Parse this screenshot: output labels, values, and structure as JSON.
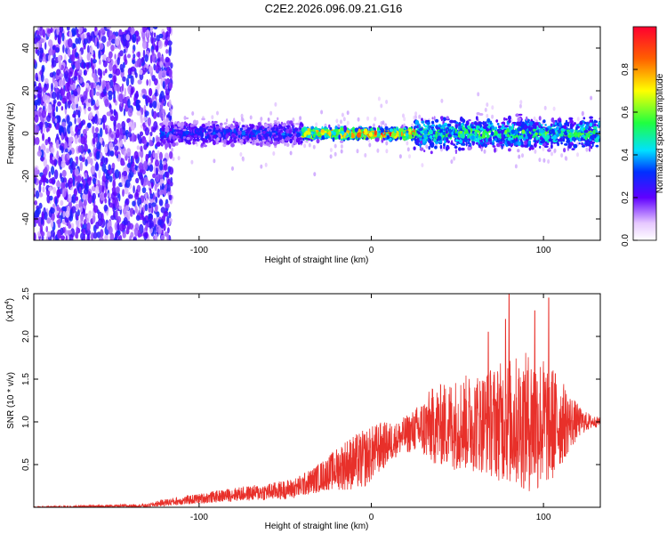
{
  "figure_title": "C2E2.2026.096.09.21.G16",
  "chart_data": [
    {
      "type": "heatmap",
      "title": "C2E2.2026.096.09.21.G16",
      "xlabel": "Height of straight line (km)",
      "ylabel": "Frequency (Hz)",
      "xlim": [
        -196,
        133
      ],
      "ylim": [
        -50,
        50
      ],
      "xticks": [
        -100,
        0,
        100
      ],
      "xtick_labels": [
        "-100",
        "0",
        "100"
      ],
      "yticks": [
        -40,
        -20,
        0,
        20,
        40
      ],
      "ytick_labels": [
        "-40",
        "-20",
        "0",
        "20",
        "40"
      ],
      "colorbar": {
        "label": "Normalized spectral amplitude",
        "range": [
          0.0,
          1.0
        ],
        "ticks": [
          0.0,
          0.2,
          0.4,
          0.6,
          0.8
        ],
        "tick_labels": [
          "0.0",
          "0.2",
          "0.4",
          "0.6",
          "0.8"
        ]
      },
      "description_regions": [
        {
          "x_range": [
            -196,
            -122
          ],
          "freq_spread_hz": 50,
          "amplitude": 0.15
        },
        {
          "x_range": [
            -122,
            -40
          ],
          "freq_spread_hz": 6,
          "amplitude": 0.3
        },
        {
          "x_range": [
            -40,
            25
          ],
          "freq_spread_hz": 3,
          "amplitude": 0.8
        },
        {
          "x_range": [
            25,
            133
          ],
          "freq_spread_hz": 8,
          "amplitude": 0.5
        }
      ]
    },
    {
      "type": "line",
      "xlabel": "Height of straight line (km)",
      "ylabel": "SNR (10 * v/v)",
      "y_multiplier_label": "(x10",
      "y_multiplier_exp": "4",
      "y_multiplier_close": ")",
      "xlim": [
        -196,
        133
      ],
      "ylim": [
        0,
        2.5
      ],
      "xticks": [
        -100,
        0,
        100
      ],
      "xtick_labels": [
        "-100",
        "0",
        "100"
      ],
      "yticks": [
        0.5,
        1.0,
        1.5,
        2.0,
        2.5
      ],
      "ytick_labels": [
        "0.5",
        "1.0",
        "1.5",
        "2.0",
        "2.5"
      ],
      "color": "#e8302a",
      "series": [
        {
          "name": "SNR",
          "x": [
            -196,
            -130,
            -122,
            -100,
            -80,
            -60,
            -45,
            -35,
            -25,
            -15,
            -5,
            5,
            15,
            25,
            35,
            50,
            65,
            80,
            95,
            105,
            115,
            122,
            128,
            133
          ],
          "baseline": [
            0.0,
            0.02,
            0.05,
            0.1,
            0.15,
            0.18,
            0.22,
            0.3,
            0.4,
            0.5,
            0.55,
            0.7,
            0.8,
            0.9,
            0.95,
            0.98,
            1.0,
            1.0,
            1.0,
            0.98,
            1.0,
            1.0,
            1.0,
            1.0
          ],
          "amplitude": [
            0.01,
            0.02,
            0.04,
            0.06,
            0.08,
            0.1,
            0.12,
            0.15,
            0.2,
            0.3,
            0.35,
            0.3,
            0.2,
            0.25,
            0.45,
            0.55,
            0.6,
            0.75,
            0.85,
            0.7,
            0.35,
            0.15,
            0.08,
            0.05
          ],
          "peaks": [
            {
              "x": 80,
              "y": 2.55
            },
            {
              "x": 103,
              "y": 2.45
            },
            {
              "x": 78,
              "y": 2.2
            },
            {
              "x": 95,
              "y": 2.3
            },
            {
              "x": 68,
              "y": 2.05
            }
          ]
        }
      ]
    }
  ]
}
